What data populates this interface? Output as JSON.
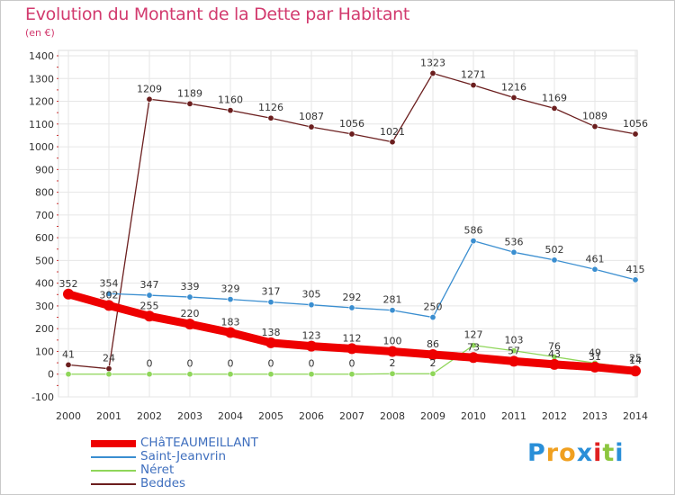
{
  "title": "Evolution du Montant de la Dette par Habitant",
  "unit_label": "(en €)",
  "chart_data": {
    "type": "line",
    "title": "Evolution du Montant de la Dette par Habitant",
    "ylabel": "(en €)",
    "xlabel": "",
    "x": [
      "2000",
      "2001",
      "2002",
      "2003",
      "2004",
      "2005",
      "2006",
      "2007",
      "2008",
      "2009",
      "2010",
      "2011",
      "2012",
      "2013",
      "2014"
    ],
    "ylim": [
      -100,
      1400
    ],
    "yticks": [
      -100,
      0,
      100,
      200,
      300,
      400,
      500,
      600,
      700,
      800,
      900,
      1000,
      1100,
      1200,
      1300,
      1400
    ],
    "grid": true,
    "legend_position": "bottom-left",
    "series": [
      {
        "name": "Beddes",
        "color": "#6b1e1e",
        "values": [
          41,
          24,
          1209,
          1189,
          1160,
          1126,
          1087,
          1056,
          1021,
          1323,
          1271,
          1216,
          1169,
          1089,
          1056
        ],
        "points": [
          0,
          1,
          2,
          3,
          4,
          5,
          6,
          7,
          8,
          9,
          10,
          11,
          12,
          13,
          14
        ]
      },
      {
        "name": "Saint-Jeanvrin",
        "color": "#3a8ed0",
        "values": [
          41,
          354,
          347,
          339,
          329,
          317,
          305,
          292,
          281,
          250,
          586,
          536,
          502,
          461,
          415
        ],
        "points": [
          1,
          2,
          3,
          4,
          5,
          6,
          7,
          8,
          9,
          10,
          11,
          12,
          13,
          14
        ]
      },
      {
        "name": "Néret",
        "color": "#8fd65a",
        "values": [
          0,
          0,
          0,
          0,
          0,
          0,
          0,
          0,
          2,
          2,
          127,
          103,
          76,
          49,
          25
        ],
        "points": [
          0,
          1,
          2,
          3,
          4,
          5,
          6,
          7,
          8,
          9,
          10,
          11,
          12,
          13,
          14
        ]
      },
      {
        "name": "CHâTEAUMEILLANT",
        "color": "#ee0000",
        "values": [
          352,
          302,
          255,
          220,
          183,
          138,
          123,
          112,
          100,
          86,
          73,
          57,
          43,
          31,
          14
        ],
        "points": [
          0,
          1,
          2,
          3,
          4,
          5,
          6,
          7,
          8,
          9,
          10,
          11,
          12,
          13,
          14
        ]
      }
    ],
    "data_labels": [
      {
        "series": "Beddes",
        "index": 0,
        "text": "41"
      },
      {
        "series": "Beddes",
        "index": 1,
        "text": "24"
      },
      {
        "series": "Beddes",
        "index": 2,
        "text": "1209"
      },
      {
        "series": "Beddes",
        "index": 3,
        "text": "1189"
      },
      {
        "series": "Beddes",
        "index": 4,
        "text": "1160"
      },
      {
        "series": "Beddes",
        "index": 5,
        "text": "1126"
      },
      {
        "series": "Beddes",
        "index": 6,
        "text": "1087"
      },
      {
        "series": "Beddes",
        "index": 7,
        "text": "1056"
      },
      {
        "series": "Beddes",
        "index": 8,
        "text": "1021"
      },
      {
        "series": "Beddes",
        "index": 9,
        "text": "1323"
      },
      {
        "series": "Beddes",
        "index": 10,
        "text": "1271"
      },
      {
        "series": "Beddes",
        "index": 11,
        "text": "1216"
      },
      {
        "series": "Beddes",
        "index": 12,
        "text": "1169"
      },
      {
        "series": "Beddes",
        "index": 13,
        "text": "1089"
      },
      {
        "series": "Beddes",
        "index": 14,
        "text": "1056"
      },
      {
        "series": "Saint-Jeanvrin",
        "index": 1,
        "text": "354"
      },
      {
        "series": "Saint-Jeanvrin",
        "index": 2,
        "text": "347"
      },
      {
        "series": "Saint-Jeanvrin",
        "index": 3,
        "text": "339"
      },
      {
        "series": "Saint-Jeanvrin",
        "index": 4,
        "text": "329"
      },
      {
        "series": "Saint-Jeanvrin",
        "index": 5,
        "text": "317"
      },
      {
        "series": "Saint-Jeanvrin",
        "index": 6,
        "text": "305"
      },
      {
        "series": "Saint-Jeanvrin",
        "index": 7,
        "text": "292"
      },
      {
        "series": "Saint-Jeanvrin",
        "index": 8,
        "text": "281"
      },
      {
        "series": "Saint-Jeanvrin",
        "index": 9,
        "text": "250"
      },
      {
        "series": "Saint-Jeanvrin",
        "index": 10,
        "text": "586"
      },
      {
        "series": "Saint-Jeanvrin",
        "index": 11,
        "text": "536"
      },
      {
        "series": "Saint-Jeanvrin",
        "index": 12,
        "text": "502"
      },
      {
        "series": "Saint-Jeanvrin",
        "index": 13,
        "text": "461"
      },
      {
        "series": "Saint-Jeanvrin",
        "index": 14,
        "text": "415"
      },
      {
        "series": "CHâTEAUMEILLANT",
        "index": 0,
        "text": "352"
      },
      {
        "series": "CHâTEAUMEILLANT",
        "index": 1,
        "text": "302"
      },
      {
        "series": "CHâTEAUMEILLANT",
        "index": 2,
        "text": "255"
      },
      {
        "series": "CHâTEAUMEILLANT",
        "index": 3,
        "text": "220"
      },
      {
        "series": "CHâTEAUMEILLANT",
        "index": 4,
        "text": "183"
      },
      {
        "series": "CHâTEAUMEILLANT",
        "index": 5,
        "text": "138"
      },
      {
        "series": "CHâTEAUMEILLANT",
        "index": 6,
        "text": "123"
      },
      {
        "series": "CHâTEAUMEILLANT",
        "index": 7,
        "text": "112"
      },
      {
        "series": "CHâTEAUMEILLANT",
        "index": 8,
        "text": "100"
      },
      {
        "series": "CHâTEAUMEILLANT",
        "index": 9,
        "text": "86"
      },
      {
        "series": "CHâTEAUMEILLANT",
        "index": 10,
        "text": "73"
      },
      {
        "series": "CHâTEAUMEILLANT",
        "index": 11,
        "text": "57"
      },
      {
        "series": "CHâTEAUMEILLANT",
        "index": 12,
        "text": "43"
      },
      {
        "series": "CHâTEAUMEILLANT",
        "index": 13,
        "text": "31"
      },
      {
        "series": "CHâTEAUMEILLANT",
        "index": 14,
        "text": "14"
      },
      {
        "series": "Néret",
        "index": 2,
        "text": "0"
      },
      {
        "series": "Néret",
        "index": 3,
        "text": "0"
      },
      {
        "series": "Néret",
        "index": 4,
        "text": "0"
      },
      {
        "series": "Néret",
        "index": 5,
        "text": "0"
      },
      {
        "series": "Néret",
        "index": 6,
        "text": "0"
      },
      {
        "series": "Néret",
        "index": 7,
        "text": "0"
      },
      {
        "series": "Néret",
        "index": 8,
        "text": "2"
      },
      {
        "series": "Néret",
        "index": 9,
        "text": "2"
      },
      {
        "series": "Néret",
        "index": 10,
        "text": "127"
      },
      {
        "series": "Néret",
        "index": 11,
        "text": "103"
      },
      {
        "series": "Néret",
        "index": 12,
        "text": "76"
      },
      {
        "series": "Néret",
        "index": 13,
        "text": "49"
      },
      {
        "series": "Néret",
        "index": 14,
        "text": "25"
      }
    ]
  },
  "legend": [
    {
      "name": "CHâTEAUMEILLANT",
      "color": "#ee0000"
    },
    {
      "name": "Saint-Jeanvrin",
      "color": "#3a8ed0"
    },
    {
      "name": "Néret",
      "color": "#8fd65a"
    },
    {
      "name": "Beddes",
      "color": "#6b1e1e"
    }
  ],
  "logo": {
    "letters": [
      "P",
      "r",
      "o",
      "x",
      "i",
      "t",
      "i"
    ],
    "colors": [
      "#2a8fd8",
      "#f0a020",
      "#f0a020",
      "#2a8fd8",
      "#e02020",
      "#8cc63f",
      "#2a8fd8"
    ]
  }
}
